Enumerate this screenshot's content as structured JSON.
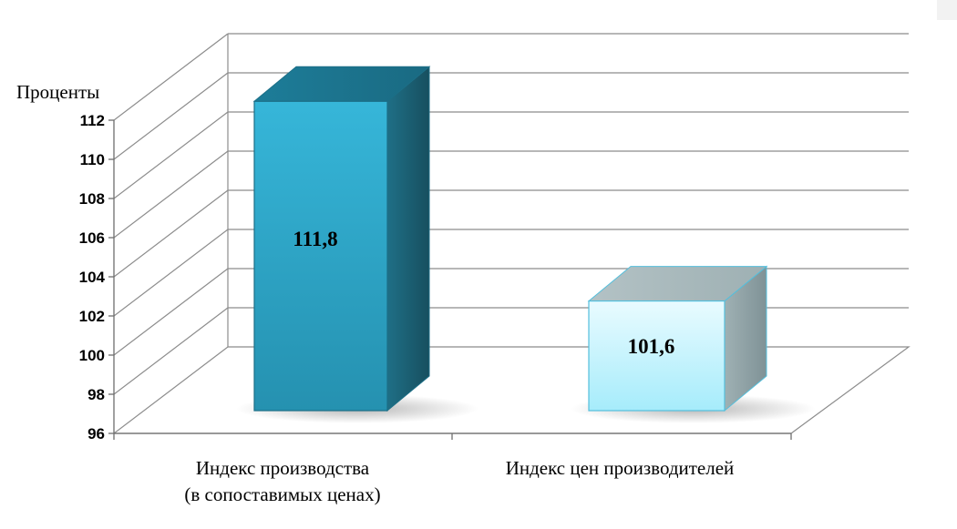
{
  "chart_data": {
    "type": "bar",
    "categories": [
      "Индекс производства\n(в сопоставимых ценах)",
      "Индекс цен производителей"
    ],
    "values": [
      111.8,
      101.6
    ],
    "value_labels": [
      "111,8",
      "101,6"
    ],
    "title": "",
    "xlabel": "",
    "ylabel": "Проценты",
    "ylim": [
      96,
      112
    ],
    "yticks": [
      96,
      98,
      100,
      102,
      104,
      106,
      108,
      110,
      112
    ],
    "grid": true,
    "legend": "none",
    "style": "3d-column",
    "colors": {
      "bar1_front": "#2fa8c9",
      "bar1_top": "#1f86a4",
      "bar1_side": "#1b5f73",
      "bar2_front": "#cdf3fb",
      "bar2_top": "#a9bcbf",
      "bar2_side": "#8e9fa3",
      "bar2_edge": "#54bfdc"
    }
  }
}
